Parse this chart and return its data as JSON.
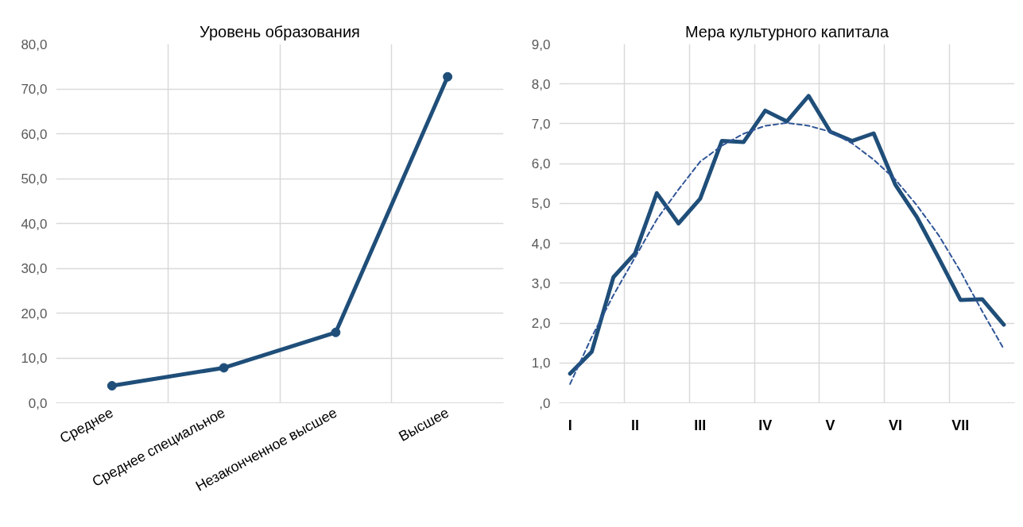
{
  "chart_data": [
    {
      "type": "line",
      "title": "Уровень образования",
      "categories": [
        "Среднее",
        "Среднее специальное",
        "Незаконченное высшее",
        "Высшее"
      ],
      "series": [
        {
          "color": "#1f4e79",
          "values": [
            3.8,
            7.8,
            15.7,
            72.7
          ]
        }
      ],
      "ylim": [
        0,
        80
      ],
      "yticks": [
        {
          "value": 0,
          "label": "0,0"
        },
        {
          "value": 10,
          "label": "10,0"
        },
        {
          "value": 20,
          "label": "20,0"
        },
        {
          "value": 30,
          "label": "30,0"
        },
        {
          "value": 40,
          "label": "40,0"
        },
        {
          "value": 50,
          "label": "50,0"
        },
        {
          "value": 60,
          "label": "60,0"
        },
        {
          "value": 70,
          "label": "70,0"
        },
        {
          "value": 80,
          "label": "80,0"
        }
      ],
      "grid": true,
      "marker": "circle",
      "line_style": "solid"
    },
    {
      "type": "line",
      "title": "Мера культурного капитала",
      "categories": [
        "I",
        null,
        null,
        "II",
        null,
        null,
        "III",
        null,
        null,
        "IV",
        null,
        null,
        "V",
        null,
        null,
        "VI",
        null,
        null,
        "VII",
        null,
        null
      ],
      "series": [
        {
          "color": "#1f4e79",
          "values": [
            0.73,
            1.28,
            3.15,
            3.75,
            5.26,
            4.5,
            5.12,
            6.57,
            6.54,
            7.33,
            7.06,
            7.7,
            6.8,
            6.57,
            6.76,
            5.47,
            4.65,
            3.63,
            2.58,
            2.6,
            1.96
          ]
        },
        {
          "line_style": "dashed",
          "color": "#2f5597",
          "values": [
            0.47,
            1.65,
            2.7,
            3.65,
            4.6,
            5.35,
            6.05,
            6.45,
            6.75,
            6.95,
            7.02,
            6.95,
            6.8,
            6.51,
            6.1,
            5.6,
            4.95,
            4.2,
            3.3,
            2.3,
            1.35
          ]
        }
      ],
      "ylim": [
        0,
        9
      ],
      "yticks": [
        {
          "value": 0,
          "label": ",0"
        },
        {
          "value": 1,
          "label": "1,0"
        },
        {
          "value": 2,
          "label": "2,0"
        },
        {
          "value": 3,
          "label": "3,0"
        },
        {
          "value": 4,
          "label": "4,0"
        },
        {
          "value": 5,
          "label": "5,0"
        },
        {
          "value": 6,
          "label": "6,0"
        },
        {
          "value": 7,
          "label": "7,0"
        },
        {
          "value": 8,
          "label": "8,0"
        },
        {
          "value": 9,
          "label": "9,0"
        }
      ],
      "grid": true,
      "marker": "none",
      "line_style": "solid"
    }
  ]
}
